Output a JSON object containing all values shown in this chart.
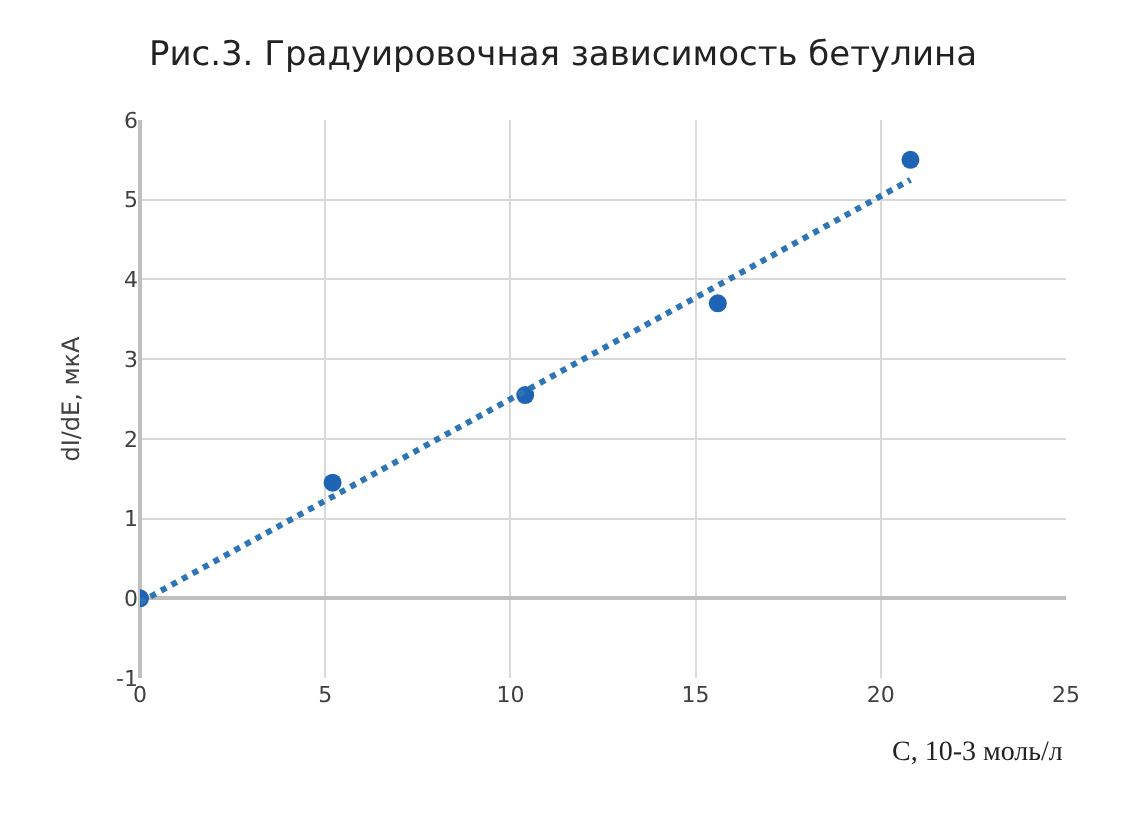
{
  "chart_data": {
    "type": "scatter",
    "title": "Рис.3. Градуировочная зависимость бетулина",
    "xlabel": "С, 10-3 моль/л",
    "ylabel": "dI/dE, мкА",
    "xlim": [
      0,
      25
    ],
    "ylim": [
      -1,
      6
    ],
    "xticks": [
      0,
      5,
      10,
      15,
      20,
      25
    ],
    "yticks": [
      -1,
      0,
      1,
      2,
      3,
      4,
      5,
      6
    ],
    "grid": true,
    "marker": "circle",
    "series": [
      {
        "x": [
          0,
          5.2,
          10.4,
          15.6,
          20.8
        ],
        "values": [
          0,
          1.45,
          2.55,
          3.7,
          5.5
        ],
        "color": "#1f64b4"
      },
      {
        "type": "line",
        "x": [
          0,
          20.8
        ],
        "values": [
          -0.05,
          5.25
        ],
        "color": "#2e75b6",
        "line_style": "dotted",
        "marker": "none"
      }
    ]
  }
}
